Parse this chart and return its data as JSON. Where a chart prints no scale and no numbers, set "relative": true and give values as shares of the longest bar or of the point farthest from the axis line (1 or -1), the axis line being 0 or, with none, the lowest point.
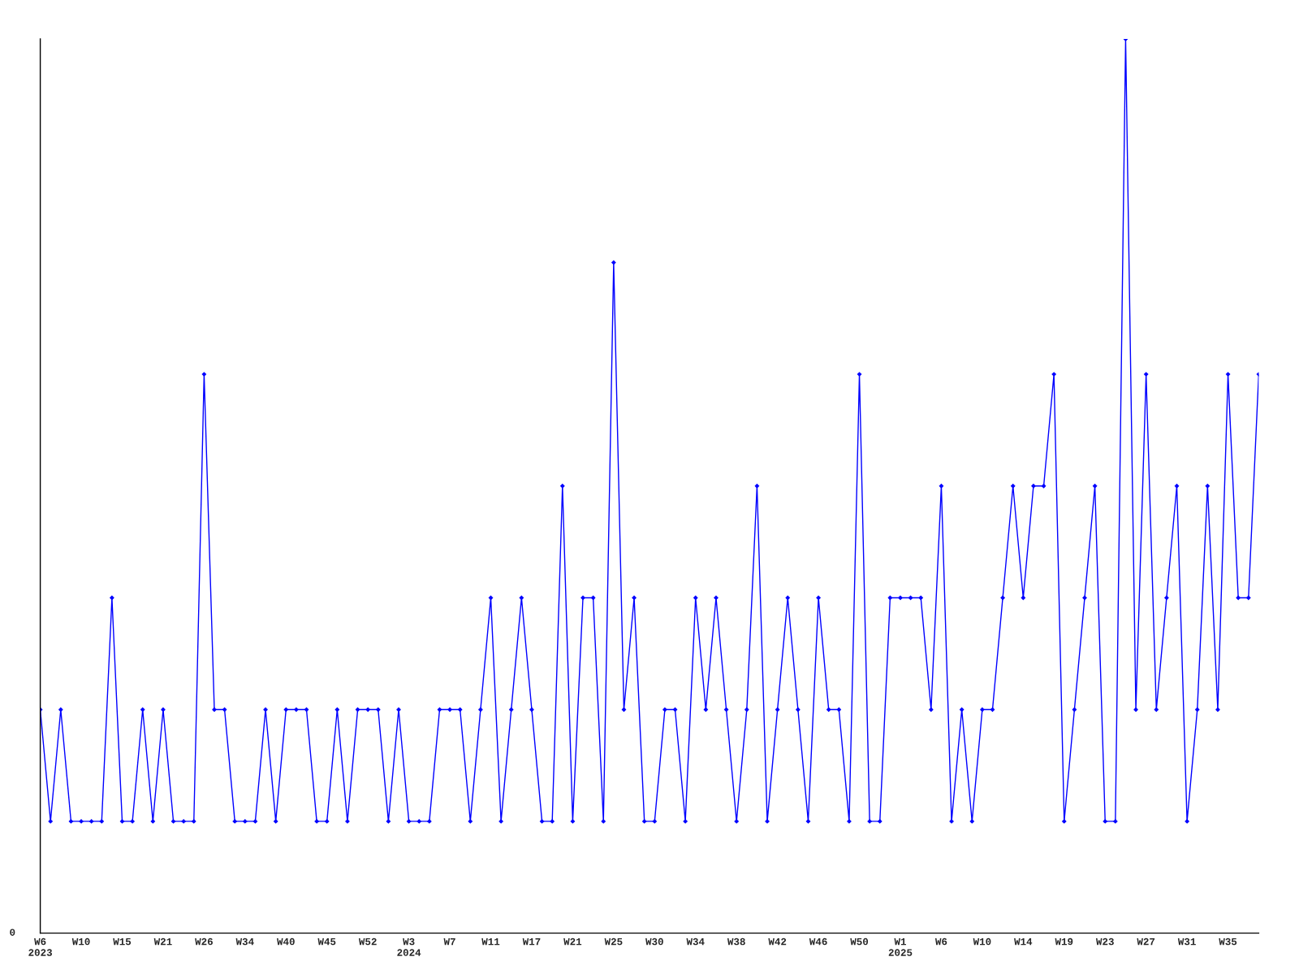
{
  "chart_data": {
    "type": "line",
    "relative": true,
    "marker": "diamond",
    "line_style": "solid",
    "grid": false,
    "legend": false,
    "categories": [
      "W6\n2023",
      null,
      null,
      null,
      "W10",
      null,
      null,
      null,
      "W15",
      null,
      null,
      null,
      "W21",
      null,
      null,
      null,
      "W26",
      null,
      null,
      null,
      "W34",
      null,
      null,
      null,
      "W40",
      null,
      null,
      null,
      "W45",
      null,
      null,
      null,
      "W52",
      null,
      null,
      null,
      "W3\n2024",
      null,
      null,
      null,
      "W7",
      null,
      null,
      null,
      "W11",
      null,
      null,
      null,
      "W17",
      null,
      null,
      null,
      "W21",
      null,
      null,
      null,
      "W25",
      null,
      null,
      null,
      "W30",
      null,
      null,
      null,
      "W34",
      null,
      null,
      null,
      "W38",
      null,
      null,
      null,
      "W42",
      null,
      null,
      null,
      "W46",
      null,
      null,
      null,
      "W50",
      null,
      null,
      null,
      "W1\n2025",
      null,
      null,
      null,
      "W6",
      null,
      null,
      null,
      "W10",
      null,
      null,
      null,
      "W14",
      null,
      null,
      null,
      "W19",
      null,
      null,
      null,
      "W23",
      null,
      null,
      null,
      "W27",
      null,
      null,
      null,
      "W31",
      null,
      null,
      null,
      "W35",
      null,
      null,
      null
    ],
    "series": [
      {
        "color": "#0000ff",
        "values": [
          0.25,
          0.125,
          0.25,
          0.125,
          0.125,
          0.125,
          0.125,
          0.375,
          0.125,
          0.125,
          0.25,
          0.125,
          0.25,
          0.125,
          0.125,
          0.125,
          0.625,
          0.25,
          0.25,
          0.125,
          0.125,
          0.125,
          0.25,
          0.125,
          0.25,
          0.25,
          0.25,
          0.125,
          0.125,
          0.25,
          0.125,
          0.25,
          0.25,
          0.25,
          0.125,
          0.25,
          0.125,
          0.125,
          0.125,
          0.25,
          0.25,
          0.25,
          0.125,
          0.25,
          0.375,
          0.125,
          0.25,
          0.375,
          0.25,
          0.125,
          0.125,
          0.5,
          0.125,
          0.375,
          0.375,
          0.125,
          0.75,
          0.25,
          0.375,
          0.125,
          0.125,
          0.25,
          0.25,
          0.125,
          0.375,
          0.25,
          0.375,
          0.25,
          0.125,
          0.25,
          0.5,
          0.125,
          0.25,
          0.375,
          0.25,
          0.125,
          0.375,
          0.25,
          0.25,
          0.125,
          0.625,
          0.125,
          0.125,
          0.375,
          0.375,
          0.375,
          0.375,
          0.25,
          0.5,
          0.125,
          0.25,
          0.125,
          0.25,
          0.25,
          0.375,
          0.5,
          0.375,
          0.5,
          0.5,
          0.625,
          0.125,
          0.25,
          0.375,
          0.5,
          0.125,
          0.125,
          1,
          0.25,
          0.625,
          0.25,
          0.375,
          0.5,
          0.125,
          0.25,
          0.5,
          0.25,
          0.625,
          0.375,
          0.375,
          0.625
        ]
      }
    ],
    "annotations": [
      "0"
    ]
  }
}
